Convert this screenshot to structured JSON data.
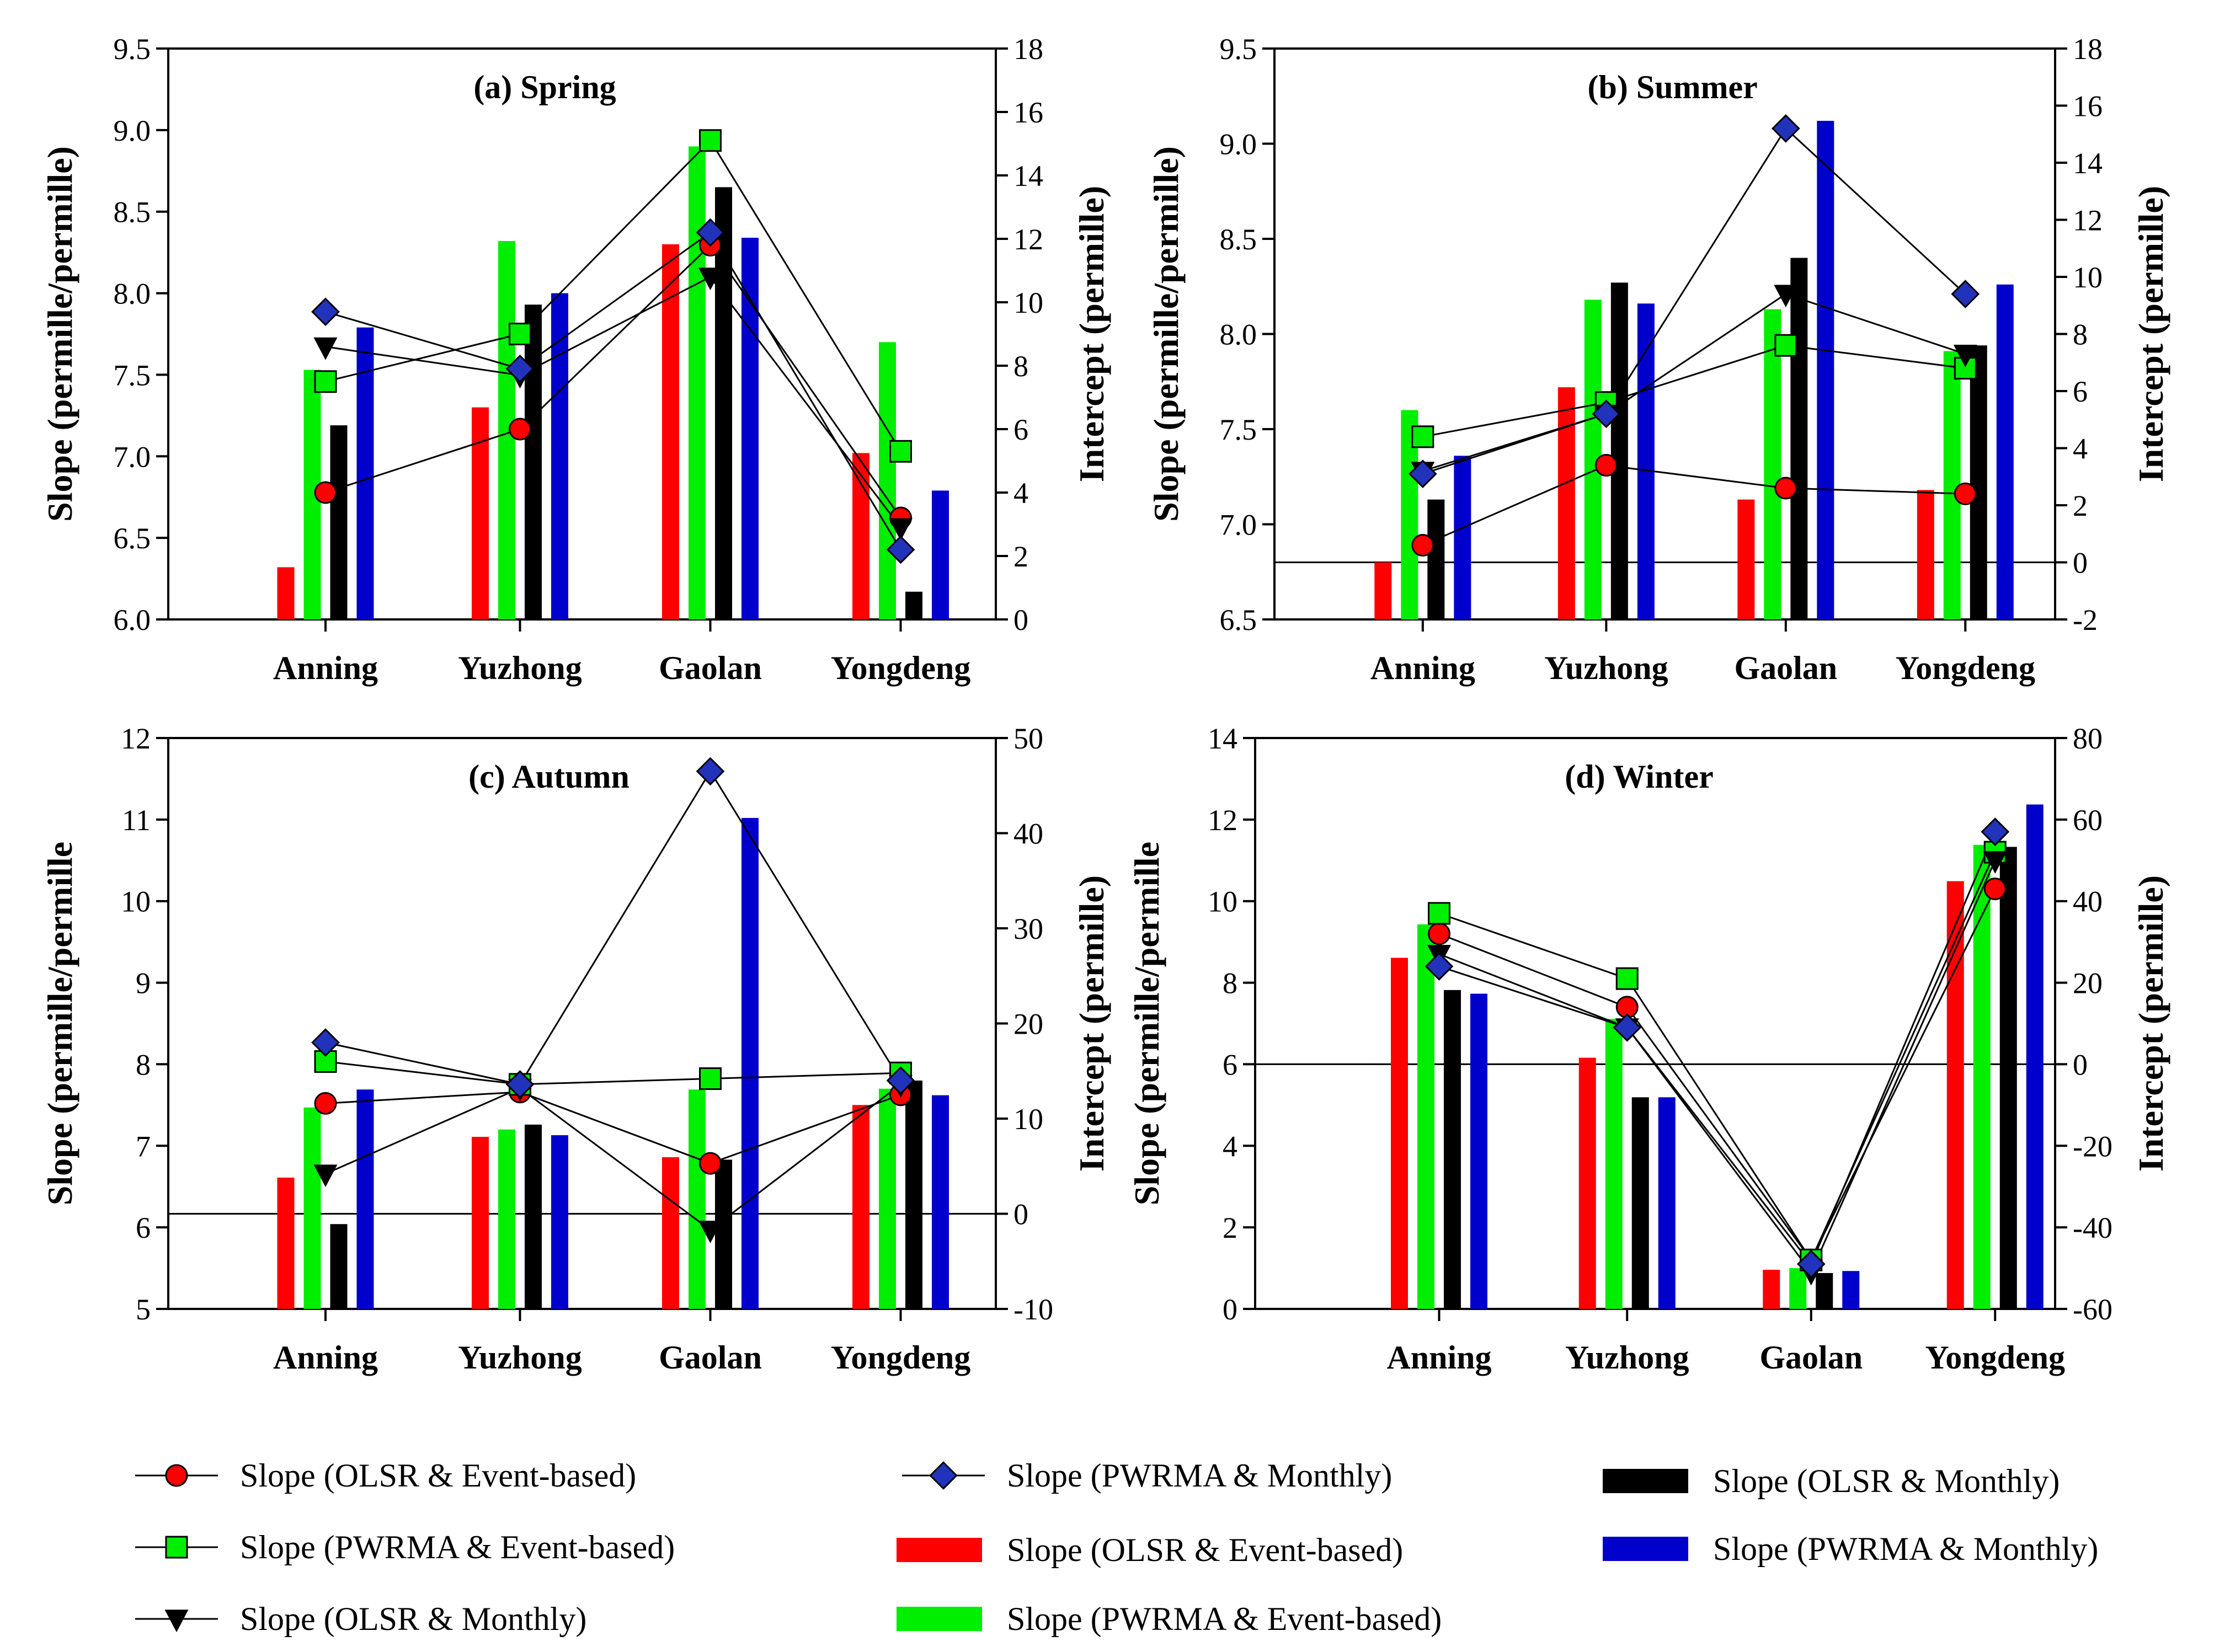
{
  "colors": {
    "olsr_event": "#ff0000",
    "pwrma_event": "#00ee00",
    "olsr_monthly": "#000000",
    "pwrma_monthly": "#0000cc",
    "pwrma_monthly_marker": "#2233bb"
  },
  "chart_data": [
    {
      "type": "bar+line",
      "title": "(a) Spring",
      "ylabel": "Slope (permille/permille)",
      "y2label": "Intercept (permille)",
      "ylim": [
        6.0,
        9.5
      ],
      "yticks": [
        "6.0",
        "6.5",
        "7.0",
        "7.5",
        "8.0",
        "8.5",
        "9.0",
        "9.5"
      ],
      "y2lim": [
        0,
        18
      ],
      "y2ticks": [
        "0",
        "2",
        "4",
        "6",
        "8",
        "10",
        "12",
        "14",
        "16",
        "18"
      ],
      "zero_line": false,
      "categories": [
        "Anning",
        "Yuzhong",
        "Gaolan",
        "Yongdeng"
      ],
      "bars": [
        {
          "name": "Slope (OLSR & Event-based)",
          "values": [
            6.32,
            7.3,
            8.3,
            7.02
          ]
        },
        {
          "name": "Slope (PWRMA & Event-based)",
          "values": [
            7.53,
            8.32,
            8.9,
            7.7
          ]
        },
        {
          "name": "Slope (OLSR & Monthly)",
          "values": [
            7.19,
            7.93,
            8.65,
            6.17
          ]
        },
        {
          "name": "Slope (PWRMA & Monthly)",
          "values": [
            7.79,
            8.0,
            8.34,
            6.79
          ]
        }
      ],
      "lines": [
        {
          "name": "Slope (OLSR & Event-based)",
          "values": [
            4.0,
            6.0,
            11.8,
            3.2
          ]
        },
        {
          "name": "Slope (PWRMA & Event-based)",
          "values": [
            7.5,
            9.0,
            15.1,
            5.3
          ]
        },
        {
          "name": "Slope (OLSR & Monthly)",
          "values": [
            8.6,
            7.7,
            10.8,
            2.9
          ]
        },
        {
          "name": "Slope (PWRMA & Monthly)",
          "values": [
            9.7,
            7.9,
            12.2,
            2.2
          ]
        }
      ]
    },
    {
      "type": "bar+line",
      "title": "(b) Summer",
      "ylabel": "Slope (permille/permille)",
      "y2label": "Intercept (permille)",
      "ylim": [
        6.5,
        9.5
      ],
      "yticks": [
        "6.5",
        "7.0",
        "7.5",
        "8.0",
        "8.5",
        "9.0",
        "9.5"
      ],
      "y2lim": [
        -2,
        18
      ],
      "y2ticks": [
        "-2",
        "0",
        "2",
        "4",
        "6",
        "8",
        "10",
        "12",
        "14",
        "16",
        "18"
      ],
      "zero_line": true,
      "categories": [
        "Anning",
        "Yuzhong",
        "Gaolan",
        "Yongdeng"
      ],
      "bars": [
        {
          "name": "Slope (OLSR & Event-based)",
          "values": [
            6.8,
            7.72,
            7.13,
            7.18
          ]
        },
        {
          "name": "Slope (PWRMA & Event-based)",
          "values": [
            7.6,
            8.18,
            8.13,
            7.91
          ]
        },
        {
          "name": "Slope (OLSR & Monthly)",
          "values": [
            7.13,
            8.27,
            8.4,
            7.94
          ]
        },
        {
          "name": "Slope (PWRMA & Monthly)",
          "values": [
            7.36,
            8.16,
            9.12,
            8.26
          ]
        }
      ],
      "lines": [
        {
          "name": "Slope (OLSR & Event-based)",
          "values": [
            0.6,
            3.4,
            2.6,
            2.4
          ]
        },
        {
          "name": "Slope (PWRMA & Event-based)",
          "values": [
            4.4,
            5.6,
            7.6,
            6.8
          ]
        },
        {
          "name": "Slope (OLSR & Monthly)",
          "values": [
            3.2,
            5.2,
            9.4,
            7.3
          ]
        },
        {
          "name": "Slope (PWRMA & Monthly)",
          "values": [
            3.1,
            5.2,
            15.2,
            9.4
          ]
        }
      ]
    },
    {
      "type": "bar+line",
      "title": "(c) Autumn",
      "ylabel": "Slope (permille/permille",
      "y2label": "Intercept (permille)",
      "ylim": [
        5,
        12
      ],
      "yticks": [
        "5",
        "6",
        "7",
        "8",
        "9",
        "10",
        "11",
        "12"
      ],
      "y2lim": [
        -10,
        50
      ],
      "y2ticks": [
        "-10",
        "0",
        "10",
        "20",
        "30",
        "40",
        "50"
      ],
      "zero_line": true,
      "categories": [
        "Anning",
        "Yuzhong",
        "Gaolan",
        "Yongdeng"
      ],
      "bars": [
        {
          "name": "Slope (OLSR & Event-based)",
          "values": [
            6.61,
            7.11,
            6.86,
            7.5
          ]
        },
        {
          "name": "Slope (PWRMA & Event-based)",
          "values": [
            7.47,
            7.2,
            7.69,
            7.7
          ]
        },
        {
          "name": "Slope (OLSR & Monthly)",
          "values": [
            6.04,
            7.26,
            6.83,
            7.8
          ]
        },
        {
          "name": "Slope (PWRMA & Monthly)",
          "values": [
            7.69,
            7.13,
            11.02,
            7.62
          ]
        }
      ],
      "lines": [
        {
          "name": "Slope (OLSR & Event-based)",
          "values": [
            11.6,
            12.8,
            5.3,
            12.5
          ]
        },
        {
          "name": "Slope (PWRMA & Event-based)",
          "values": [
            16.0,
            13.6,
            14.2,
            14.8
          ]
        },
        {
          "name": "Slope (OLSR & Monthly)",
          "values": [
            4.2,
            13.2,
            -1.7,
            13.6
          ]
        },
        {
          "name": "Slope (PWRMA & Monthly)",
          "values": [
            18.0,
            13.6,
            46.5,
            14.0
          ]
        }
      ]
    },
    {
      "type": "bar+line",
      "title": "(d) Winter",
      "ylabel": "Slope (permille/permille",
      "y2label": "Intercept (permille)",
      "ylim": [
        0,
        14
      ],
      "yticks": [
        "0",
        "2",
        "4",
        "6",
        "8",
        "10",
        "12",
        "14"
      ],
      "y2lim": [
        -60,
        80
      ],
      "y2ticks": [
        "-60",
        "-40",
        "-20",
        "0",
        "20",
        "40",
        "60",
        "80"
      ],
      "zero_line": true,
      "categories": [
        "Anning",
        "Yuzhong",
        "Gaolan",
        "Yongdeng"
      ],
      "bars": [
        {
          "name": "Slope (OLSR & Event-based)",
          "values": [
            8.61,
            6.16,
            0.96,
            10.49
          ]
        },
        {
          "name": "Slope (PWRMA & Event-based)",
          "values": [
            9.43,
            7.11,
            1.0,
            11.38
          ]
        },
        {
          "name": "Slope (OLSR & Monthly)",
          "values": [
            7.82,
            5.19,
            0.88,
            11.33
          ]
        },
        {
          "name": "Slope (PWRMA & Monthly)",
          "values": [
            7.73,
            5.19,
            0.93,
            12.37
          ]
        }
      ],
      "lines": [
        {
          "name": "Slope (OLSR & Event-based)",
          "values": [
            32,
            14,
            -48,
            43
          ]
        },
        {
          "name": "Slope (PWRMA & Event-based)",
          "values": [
            37,
            21,
            -48,
            52
          ]
        },
        {
          "name": "Slope (OLSR & Monthly)",
          "values": [
            27,
            9,
            -51,
            50
          ]
        },
        {
          "name": "Slope (PWRMA & Monthly)",
          "values": [
            24,
            9,
            -49,
            57
          ]
        }
      ]
    }
  ],
  "legend": {
    "lines": [
      {
        "label": "Slope (OLSR & Event-based)",
        "marker": "circle"
      },
      {
        "label": "Slope (PWRMA & Event-based)",
        "marker": "square"
      },
      {
        "label": "Slope (OLSR & Monthly)",
        "marker": "triangle-down"
      },
      {
        "label": "Slope (PWRMA & Monthly)",
        "marker": "diamond"
      }
    ],
    "bars": [
      {
        "label": "Slope (OLSR & Event-based)"
      },
      {
        "label": "Slope (PWRMA & Event-based)"
      },
      {
        "label": "Slope (OLSR & Monthly)"
      },
      {
        "label": "Slope (PWRMA & Monthly)"
      }
    ]
  }
}
